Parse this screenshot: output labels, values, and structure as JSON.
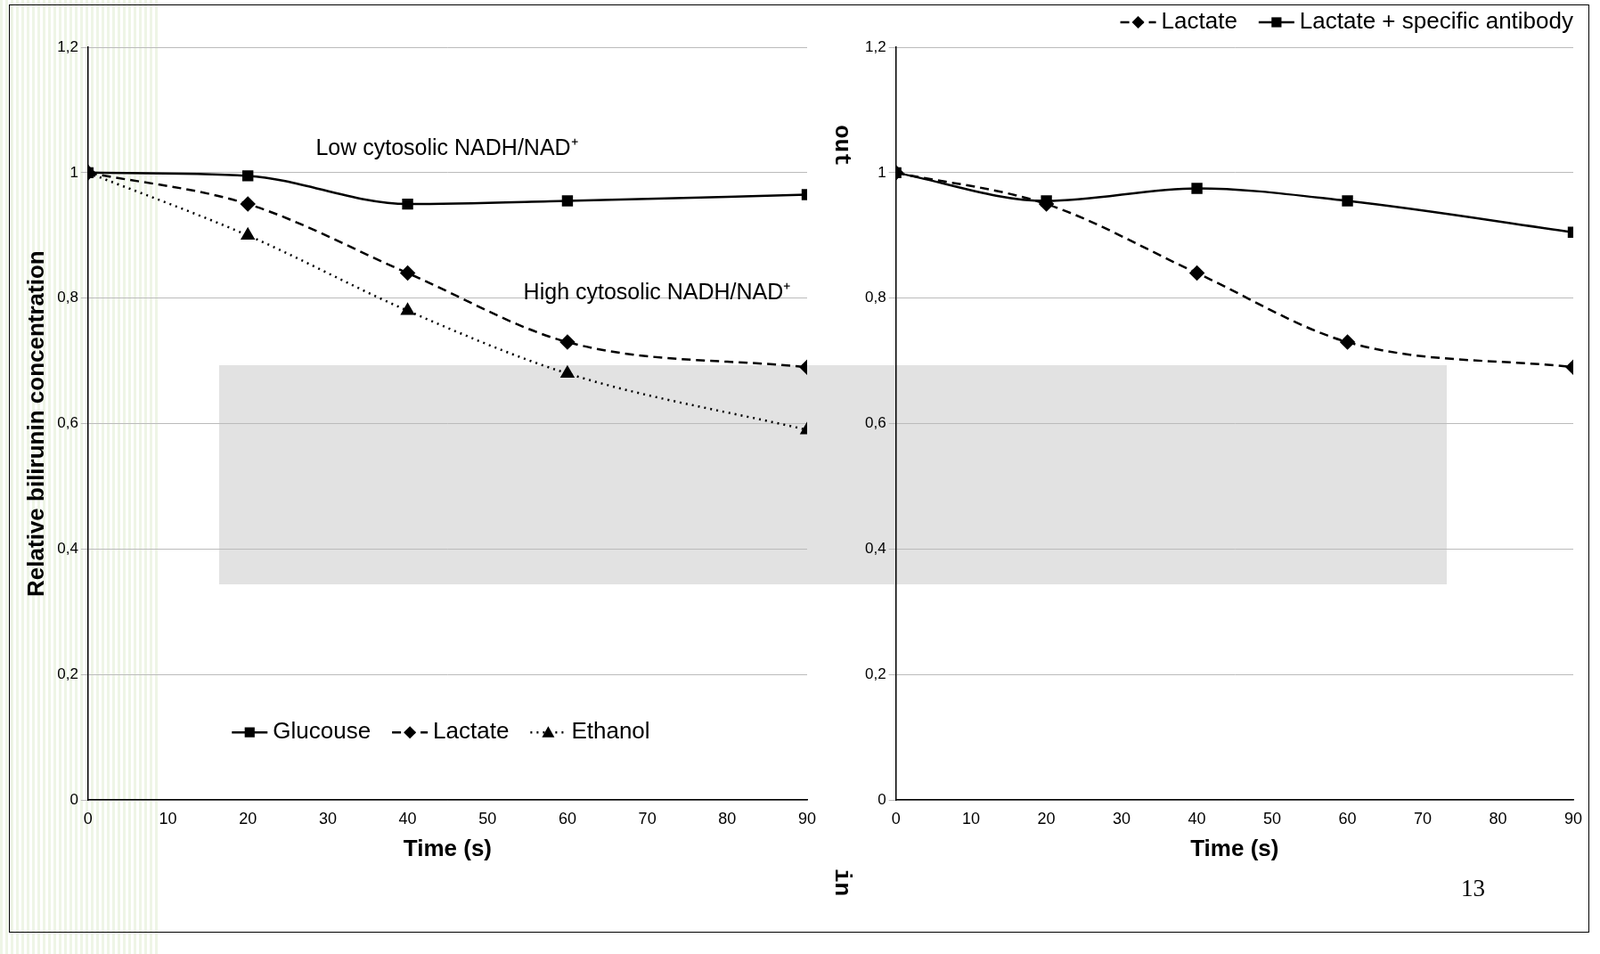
{
  "chart_data": [
    {
      "type": "line",
      "x": [
        0,
        20,
        40,
        60,
        90
      ],
      "xlim": [
        0,
        90
      ],
      "xticks": [
        0,
        10,
        20,
        30,
        40,
        50,
        60,
        70,
        80,
        90
      ],
      "ylim": [
        0,
        1.2
      ],
      "yticks": [
        0,
        {
          "value": 0.2,
          "label": "0,2"
        },
        {
          "value": 0.4,
          "label": "0,4"
        },
        {
          "value": 0.6,
          "label": "0,6"
        },
        {
          "value": 0.8,
          "label": "0,8"
        },
        1,
        {
          "value": 1.2,
          "label": "1,2"
        }
      ],
      "x_label": "Time (s)",
      "y_label": "Relative bilirunin concentration",
      "grid": "y",
      "legend": "lower left",
      "series": [
        {
          "name": "Glucouse",
          "color": "#000000",
          "marker": "square",
          "line_style": "solid",
          "values": [
            1,
            0.995,
            0.95,
            0.955,
            0.965
          ]
        },
        {
          "name": "Lactate",
          "color": "#000000",
          "marker": "diamond",
          "line_style": "dashed",
          "values": [
            1,
            0.95,
            0.84,
            0.73,
            0.69
          ]
        },
        {
          "name": "Ethanol",
          "color": "#000000",
          "marker": "triangle",
          "line_style": "dotted",
          "values": [
            1,
            0.9,
            0.78,
            0.68,
            0.59
          ]
        }
      ],
      "annotations": [
        {
          "text": "Low cytosolic NADH/NAD⁺",
          "x": 28.5,
          "y": 1.02
        },
        {
          "text": "High cytosolic NADH/NAD⁺",
          "x": 54.5,
          "y": 0.79
        }
      ]
    },
    {
      "type": "line",
      "x": [
        0,
        20,
        40,
        60,
        90
      ],
      "xlim": [
        0,
        90
      ],
      "xticks": [
        0,
        10,
        20,
        30,
        40,
        50,
        60,
        70,
        80,
        90
      ],
      "ylim": [
        0,
        1.2
      ],
      "yticks": [
        0,
        {
          "value": 0.2,
          "label": "0,2"
        },
        {
          "value": 0.4,
          "label": "0,4"
        },
        {
          "value": 0.6,
          "label": "0,6"
        },
        {
          "value": 0.8,
          "label": "0,8"
        },
        1,
        {
          "value": 1.2,
          "label": "1,2"
        }
      ],
      "x_label": "Time (s)",
      "grid": "y",
      "legend": "upper right",
      "series": [
        {
          "name": "Lactate",
          "color": "#000000",
          "marker": "diamond",
          "line_style": "dashed",
          "values": [
            1,
            0.95,
            0.84,
            0.73,
            0.69
          ]
        },
        {
          "name": "Lactate + specific antibody",
          "color": "#000000",
          "marker": "square",
          "line_style": "solid",
          "values": [
            1,
            0.955,
            0.975,
            0.955,
            0.905
          ]
        }
      ]
    }
  ],
  "slide": {
    "side_labels": [
      "out",
      "in"
    ],
    "page_number": 13
  }
}
